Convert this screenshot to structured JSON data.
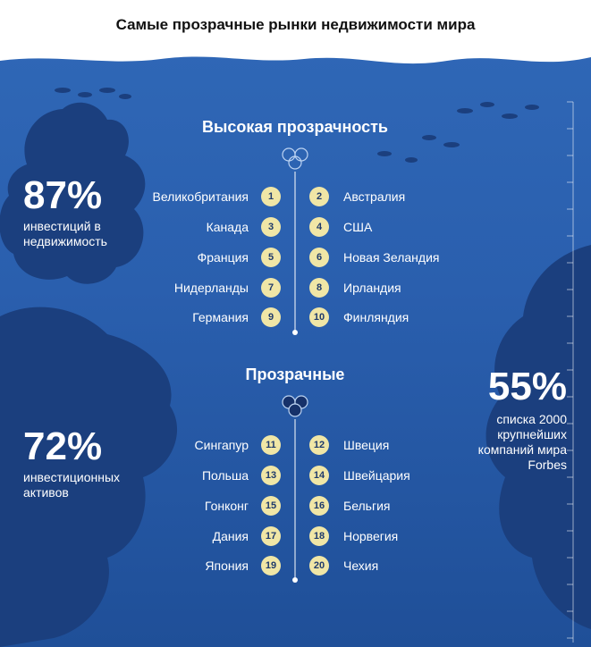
{
  "title": "Самые прозрачные рынки недвижимости мира",
  "sections": [
    {
      "title": "Высокая прозрачность",
      "left": [
        {
          "rank": "1",
          "name": "Великобритания"
        },
        {
          "rank": "3",
          "name": "Канада"
        },
        {
          "rank": "5",
          "name": "Франция"
        },
        {
          "rank": "7",
          "name": "Нидерланды"
        },
        {
          "rank": "9",
          "name": "Германия"
        }
      ],
      "right": [
        {
          "rank": "2",
          "name": "Австралия"
        },
        {
          "rank": "4",
          "name": "США"
        },
        {
          "rank": "6",
          "name": "Новая Зеландия"
        },
        {
          "rank": "8",
          "name": "Ирландия"
        },
        {
          "rank": "10",
          "name": "Финляндия"
        }
      ]
    },
    {
      "title": "Прозрачные",
      "left": [
        {
          "rank": "11",
          "name": "Сингапур"
        },
        {
          "rank": "13",
          "name": "Польша"
        },
        {
          "rank": "15",
          "name": "Гонконг"
        },
        {
          "rank": "17",
          "name": "Дания"
        },
        {
          "rank": "19",
          "name": "Япония"
        }
      ],
      "right": [
        {
          "rank": "12",
          "name": "Швеция"
        },
        {
          "rank": "14",
          "name": "Швейцария"
        },
        {
          "rank": "16",
          "name": "Бельгия"
        },
        {
          "rank": "18",
          "name": "Норвегия"
        },
        {
          "rank": "20",
          "name": "Чехия"
        }
      ]
    }
  ],
  "stats": [
    {
      "value": "87%",
      "lines": [
        "инвестиций в",
        "недвижимость"
      ]
    },
    {
      "value": "72%",
      "lines": [
        "инвестиционных",
        "активов"
      ]
    },
    {
      "value": "55%",
      "lines": [
        "списка 2000",
        "крупнейших",
        "компаний мира",
        "Forbes"
      ]
    }
  ],
  "colors": {
    "background_top": "#2f67b6",
    "background_bottom": "#1f4f98",
    "silhouette": "#1b3f7e",
    "badge": "#f0e6a6",
    "badge_text": "#1f3a6b"
  }
}
